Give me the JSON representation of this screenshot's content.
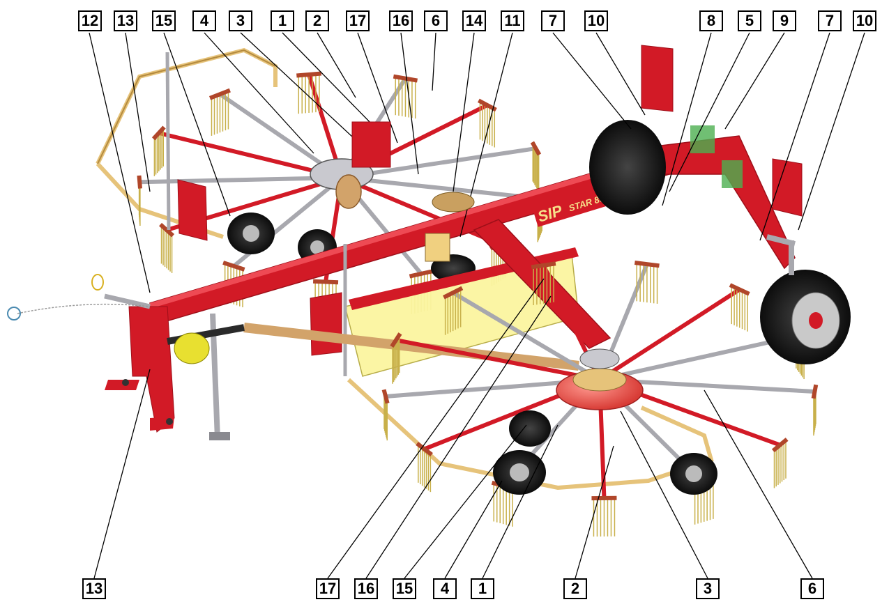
{
  "callouts_top": [
    "12",
    "13",
    "15",
    "4",
    "3",
    "1",
    "2",
    "17",
    "16",
    "6",
    "14",
    "11",
    "7",
    "10",
    "8",
    "5",
    "9",
    "7",
    "10"
  ],
  "callouts_bottom": [
    "13",
    "17",
    "16",
    "15",
    "4",
    "1",
    "2",
    "3",
    "6"
  ],
  "branding": {
    "logo": "SIP",
    "model": "STAR 850/26"
  },
  "colors": {
    "frame": "#d21a26",
    "frame_dark": "#9e0f19",
    "arm": "#e6c37a",
    "arm_dark": "#b48a3e",
    "steel": "#a8a8ae",
    "tine": "#c8b04a",
    "shield": "#fbf5a0",
    "rotor_cap": "#ee6a64",
    "tire": "#1a1a1a",
    "rim": "#c9c9c9"
  }
}
